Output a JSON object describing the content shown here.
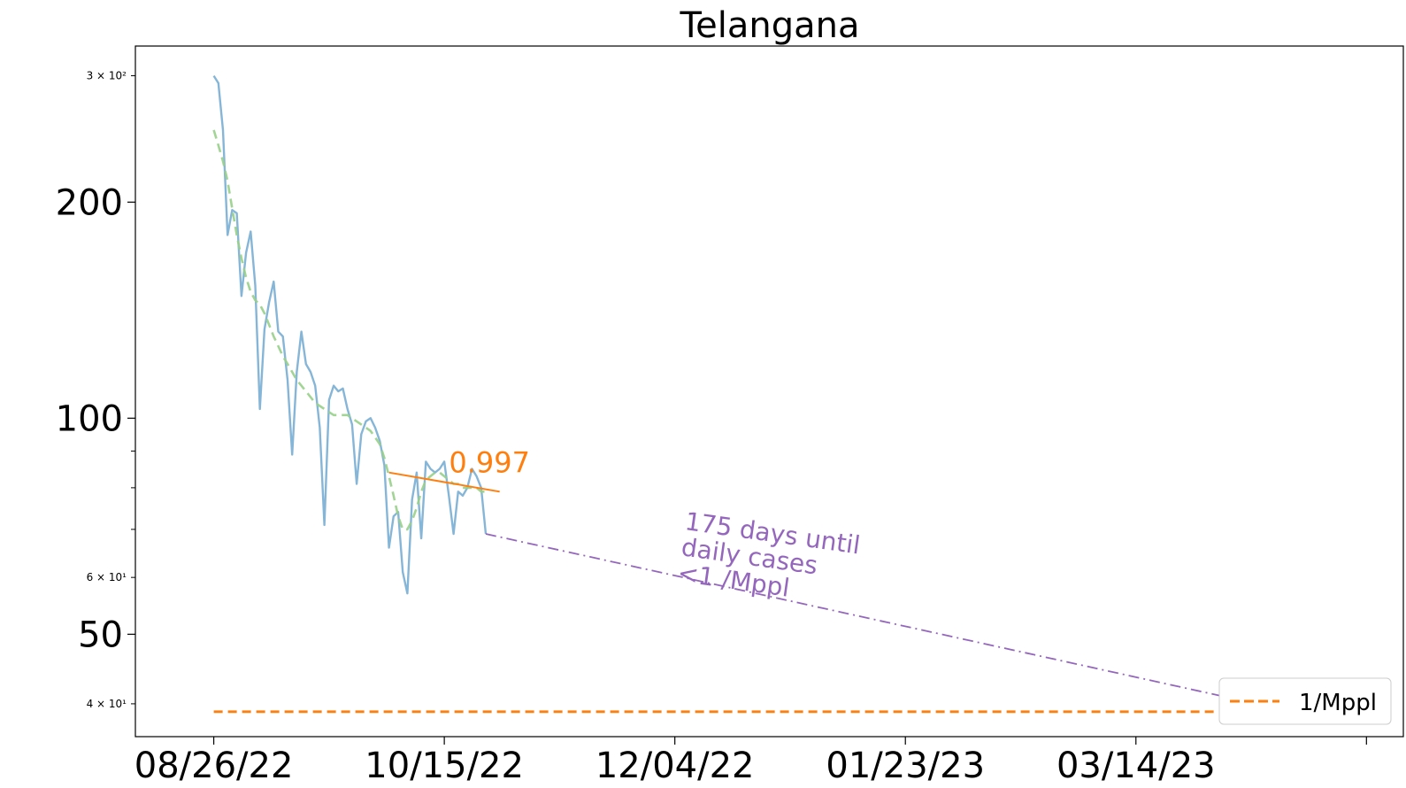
{
  "chart_data": {
    "type": "line",
    "title": "Telangana",
    "y_scale": "log",
    "ylim": [
      36,
      330
    ],
    "xlim": [
      "2022-08-09",
      "2023-05-11"
    ],
    "x_ticks": [
      "08/26/22",
      "10/15/22",
      "12/04/22",
      "01/23/23",
      "03/14/23",
      ""
    ],
    "x_tick_dates": [
      "2022-08-26",
      "2022-10-15",
      "2022-12-04",
      "2023-01-23",
      "2023-03-14",
      "2023-05-03"
    ],
    "y_major_ticks": [
      {
        "value": 50,
        "label": "50"
      },
      {
        "value": 100,
        "label": "100"
      },
      {
        "value": 200,
        "label": "200"
      }
    ],
    "y_minor_ticks": [
      {
        "value": 40,
        "label": "4 × 10¹"
      },
      {
        "value": 60,
        "label": "6 × 10¹"
      },
      {
        "value": 70,
        "label": ""
      },
      {
        "value": 80,
        "label": ""
      },
      {
        "value": 90,
        "label": ""
      },
      {
        "value": 300,
        "label": "3 × 10²"
      }
    ],
    "series": [
      {
        "role": "daily",
        "color": "#7fb2d5",
        "style": "solid",
        "start": "2022-08-26",
        "values": [
          300,
          293,
          252,
          180,
          195,
          193,
          148,
          170,
          182,
          153,
          103,
          133,
          145,
          155,
          132,
          130,
          113,
          89,
          116,
          132,
          119,
          116,
          111,
          97,
          71,
          106,
          111,
          109,
          110,
          103,
          98,
          81,
          95,
          99,
          100,
          97,
          93,
          86,
          66,
          73,
          74,
          61,
          57,
          77,
          84,
          68,
          87,
          85,
          84,
          85,
          87,
          78,
          69,
          79,
          78,
          80,
          85,
          83,
          80,
          69
        ]
      },
      {
        "role": "trend",
        "color": "#98d08a",
        "style": "dashed",
        "start": "2022-08-26",
        "values": [
          252,
          240,
          228,
          214,
          196,
          180,
          167,
          157,
          150,
          146,
          144,
          140,
          135,
          130,
          126,
          122,
          119,
          116,
          113,
          111,
          109,
          107,
          105,
          104,
          103,
          102,
          101,
          101,
          101,
          101,
          100,
          99,
          98,
          97,
          96,
          94,
          92,
          88,
          83,
          78,
          73,
          70,
          70,
          72,
          75,
          79,
          82,
          83,
          84,
          84,
          83,
          82,
          81,
          81,
          80,
          80,
          80,
          80,
          79,
          79
        ]
      },
      {
        "role": "fit",
        "color": "#ff7f0e",
        "style": "solid",
        "x": [
          "2022-10-03",
          "2022-10-27"
        ],
        "values": [
          84,
          79
        ]
      },
      {
        "role": "projection",
        "color": "#9467bd",
        "style": "dashdot",
        "x": [
          "2022-10-24",
          "2023-04-17"
        ],
        "values": [
          69,
          39
        ]
      },
      {
        "role": "threshold",
        "name": "1/Mppl",
        "color": "#ff7f0e",
        "style": "dashed",
        "x": [
          "2022-08-26",
          "2023-04-17"
        ],
        "values": [
          39,
          39
        ]
      }
    ],
    "annotations": [
      {
        "text": "0.997",
        "color": "#ff7f0e",
        "x": "2022-10-16",
        "y": 84
      },
      {
        "lines": [
          "175 days until",
          "daily cases",
          "<1 /Mppl"
        ],
        "color": "#9467bd",
        "x": "2022-12-06",
        "y": 70,
        "rotation_deg": -8
      }
    ],
    "legend": {
      "placement": "bottom-right",
      "entries": [
        "1/Mppl"
      ]
    },
    "grid": false
  }
}
